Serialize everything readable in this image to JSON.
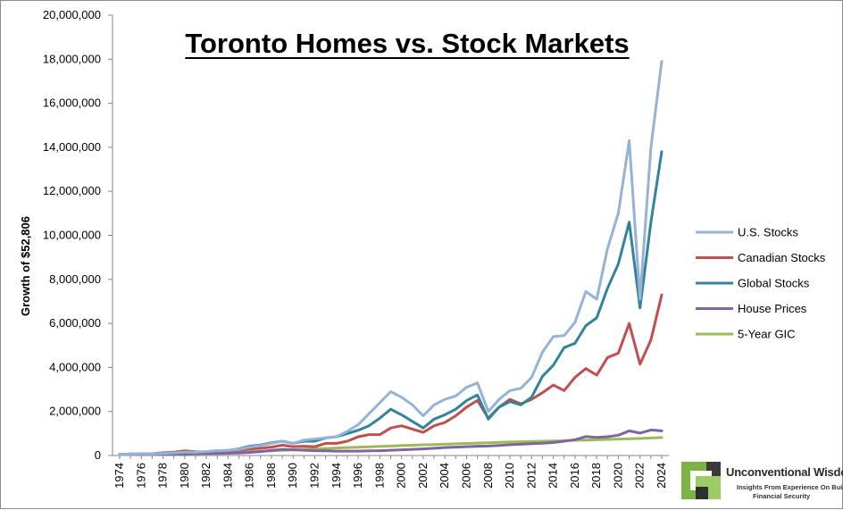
{
  "chart_data": {
    "type": "line",
    "title": "Toronto Homes vs. Stock Markets",
    "ylabel": "Growth of $52,806",
    "xlabel": "",
    "ylim": [
      0,
      20000000
    ],
    "y_ticks": [
      "0",
      "2,000,000",
      "4,000,000",
      "6,000,000",
      "8,000,000",
      "10,000,000",
      "12,000,000",
      "14,000,000",
      "16,000,000",
      "18,000,000",
      "20,000,000"
    ],
    "x_ticks": [
      "1974",
      "1976",
      "1978",
      "1980",
      "1982",
      "1984",
      "1986",
      "1988",
      "1990",
      "1992",
      "1994",
      "1996",
      "1998",
      "2000",
      "2002",
      "2004",
      "2006",
      "2008",
      "2010",
      "2012",
      "2014",
      "2016",
      "2018",
      "2020",
      "2022",
      "2024"
    ],
    "x": [
      1974,
      1975,
      1976,
      1977,
      1978,
      1979,
      1980,
      1981,
      1982,
      1983,
      1984,
      1985,
      1986,
      1987,
      1988,
      1989,
      1990,
      1991,
      1992,
      1993,
      1994,
      1995,
      1996,
      1997,
      1998,
      1999,
      2000,
      2001,
      2002,
      2003,
      2004,
      2005,
      2006,
      2007,
      2008,
      2009,
      2010,
      2011,
      2012,
      2013,
      2014,
      2015,
      2016,
      2017,
      2018,
      2019,
      2020,
      2021,
      2022,
      2023,
      2024
    ],
    "grid": false,
    "legend_position": "right",
    "series": [
      {
        "name": "U.S. Stocks",
        "color": "#95B3D7",
        "values": [
          52806,
          60000,
          70000,
          75000,
          90000,
          120000,
          150000,
          150000,
          180000,
          220000,
          230000,
          280000,
          380000,
          450000,
          550000,
          650000,
          550000,
          700000,
          750000,
          800000,
          850000,
          1100000,
          1400000,
          1900000,
          2400000,
          2900000,
          2650000,
          2300000,
          1800000,
          2300000,
          2550000,
          2700000,
          3100000,
          3300000,
          2000000,
          2550000,
          2950000,
          3050000,
          3550000,
          4700000,
          5400000,
          5450000,
          6050000,
          7450000,
          7100000,
          9400000,
          11000000,
          14300000,
          7100000,
          14000000,
          17900000
        ]
      },
      {
        "name": "Canadian Stocks",
        "color": "#C0504D",
        "values": [
          52806,
          70000,
          75000,
          80000,
          120000,
          150000,
          210000,
          170000,
          160000,
          220000,
          220000,
          240000,
          300000,
          330000,
          380000,
          470000,
          400000,
          420000,
          400000,
          550000,
          550000,
          650000,
          850000,
          950000,
          950000,
          1250000,
          1350000,
          1200000,
          1050000,
          1350000,
          1500000,
          1800000,
          2200000,
          2500000,
          1700000,
          2200000,
          2550000,
          2350000,
          2550000,
          2850000,
          3200000,
          2950000,
          3550000,
          3950000,
          3650000,
          4450000,
          4650000,
          6000000,
          4150000,
          5250000,
          7300000
        ]
      },
      {
        "name": "Global Stocks",
        "color": "#31849B",
        "values": [
          52806,
          60000,
          65000,
          70000,
          90000,
          110000,
          140000,
          150000,
          170000,
          220000,
          230000,
          300000,
          420000,
          480000,
          580000,
          650000,
          550000,
          650000,
          650000,
          800000,
          850000,
          1000000,
          1150000,
          1350000,
          1700000,
          2100000,
          1850000,
          1550000,
          1250000,
          1650000,
          1850000,
          2100000,
          2500000,
          2750000,
          1650000,
          2200000,
          2450000,
          2300000,
          2650000,
          3600000,
          4100000,
          4900000,
          5100000,
          5900000,
          6250000,
          7600000,
          8700000,
          10600000,
          6700000,
          10600000,
          13800000
        ]
      },
      {
        "name": "House Prices",
        "color": "#8064A2",
        "values": [
          52806,
          55000,
          60000,
          62000,
          65000,
          70000,
          80000,
          85000,
          90000,
          95000,
          100000,
          110000,
          140000,
          180000,
          230000,
          280000,
          260000,
          240000,
          220000,
          210000,
          200000,
          200000,
          200000,
          210000,
          220000,
          240000,
          260000,
          280000,
          300000,
          330000,
          360000,
          380000,
          400000,
          420000,
          430000,
          460000,
          490000,
          510000,
          540000,
          560000,
          590000,
          650000,
          720000,
          860000,
          820000,
          850000,
          920000,
          1120000,
          1020000,
          1160000,
          1120000
        ]
      },
      {
        "name": "5-Year GIC",
        "color": "#9BBB59",
        "values": [
          52806,
          58000,
          64000,
          70000,
          77000,
          85000,
          95000,
          108000,
          122000,
          136000,
          150000,
          165000,
          180000,
          196000,
          213000,
          232000,
          254000,
          278000,
          300000,
          320000,
          340000,
          360000,
          378000,
          395000,
          412000,
          430000,
          450000,
          468000,
          485000,
          500000,
          515000,
          530000,
          547000,
          565000,
          582000,
          598000,
          612000,
          625000,
          638000,
          650000,
          662000,
          675000,
          688000,
          700000,
          715000,
          730000,
          745000,
          760000,
          775000,
          795000,
          815000
        ]
      }
    ]
  },
  "logo": {
    "name": "Unconventional Wisdom",
    "tagline_1": "Insights From Experience On Building",
    "tagline_2": "Financial Security",
    "colors": {
      "green": "#7CB342",
      "dark": "#3a3a3a"
    }
  }
}
